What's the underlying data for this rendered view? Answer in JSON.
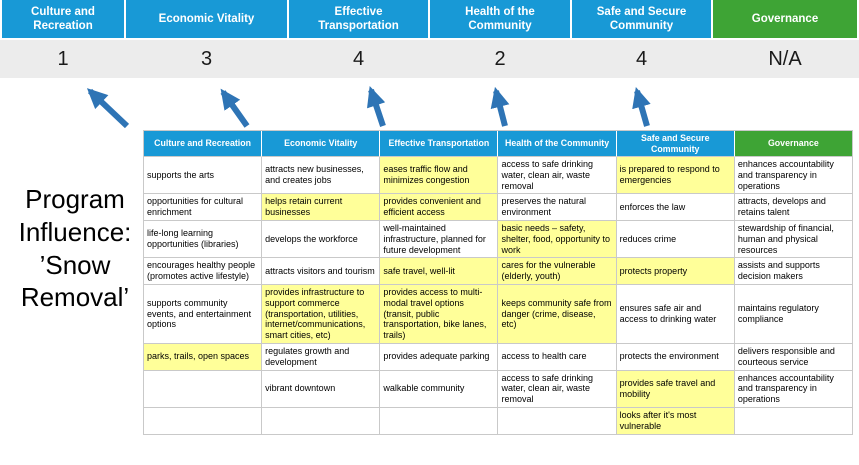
{
  "colors": {
    "pillar_blue": "#1899d6",
    "governance_green": "#3ea435",
    "score_band_bg": "#ececec",
    "highlight_yellow": "#ffff99",
    "arrow_blue": "#2e74b5",
    "cell_border": "#c9c9c9"
  },
  "title": {
    "program_label": "Program\nInfluence:\n’Snow\nRemoval’"
  },
  "pillars": [
    {
      "name": "Culture and Recreation",
      "score": "1",
      "accent": "blue"
    },
    {
      "name": "Economic Vitality",
      "score": "3",
      "accent": "blue"
    },
    {
      "name": "Effective Transportation",
      "score": "4",
      "accent": "blue"
    },
    {
      "name": "Health of the Community",
      "score": "2",
      "accent": "blue"
    },
    {
      "name": "Safe and Secure Community",
      "score": "4",
      "accent": "blue"
    },
    {
      "name": "Governance",
      "score": "N/A",
      "accent": "green"
    }
  ],
  "matrix": {
    "headers": [
      "Culture and Recreation",
      "Economic Vitality",
      "Effective Transportation",
      "Health of the Community",
      "Safe and Secure Community",
      "Governance"
    ],
    "rows": [
      [
        {
          "text": "supports the arts",
          "highlight": false
        },
        {
          "text": "attracts new businesses, and creates jobs",
          "highlight": false
        },
        {
          "text": "eases traffic flow and minimizes congestion",
          "highlight": true
        },
        {
          "text": "access to safe drinking water, clean air, waste removal",
          "highlight": false
        },
        {
          "text": "is prepared to respond to emergencies",
          "highlight": true
        },
        {
          "text": "enhances accountability and transparency in operations",
          "highlight": false
        }
      ],
      [
        {
          "text": "opportunities for cultural enrichment",
          "highlight": false
        },
        {
          "text": "helps retain current businesses",
          "highlight": true
        },
        {
          "text": "provides convenient and efficient access",
          "highlight": true
        },
        {
          "text": "preserves the natural environment",
          "highlight": false
        },
        {
          "text": "enforces the law",
          "highlight": false
        },
        {
          "text": "attracts, develops and retains talent",
          "highlight": false
        }
      ],
      [
        {
          "text": "life-long learning opportunities (libraries)",
          "highlight": false
        },
        {
          "text": "develops the workforce",
          "highlight": false
        },
        {
          "text": "well-maintained infrastructure, planned for future development",
          "highlight": false
        },
        {
          "text": "basic needs – safety, shelter, food, opportunity to work",
          "highlight": true
        },
        {
          "text": "reduces crime",
          "highlight": false
        },
        {
          "text": "stewardship of financial, human and physical resources",
          "highlight": false
        }
      ],
      [
        {
          "text": "encourages healthy people (promotes active lifestyle)",
          "highlight": false
        },
        {
          "text": "attracts visitors and tourism",
          "highlight": false
        },
        {
          "text": "safe travel, well-lit",
          "highlight": true
        },
        {
          "text": "cares for the vulnerable (elderly, youth)",
          "highlight": true
        },
        {
          "text": "protects property",
          "highlight": true
        },
        {
          "text": "assists and supports decision makers",
          "highlight": false
        }
      ],
      [
        {
          "text": "supports community events, and entertainment options",
          "highlight": false
        },
        {
          "text": "provides infrastructure to support commerce (transportation, utilities, internet/communications, smart cities, etc)",
          "highlight": true
        },
        {
          "text": "provides access to multi-modal travel options (transit, public transportation, bike lanes, trails)",
          "highlight": true
        },
        {
          "text": "keeps community safe from danger (crime, disease, etc)",
          "highlight": true
        },
        {
          "text": "ensures safe air and access to drinking water",
          "highlight": false
        },
        {
          "text": "maintains regulatory compliance",
          "highlight": false
        }
      ],
      [
        {
          "text": "parks, trails, open spaces",
          "highlight": true
        },
        {
          "text": "regulates growth and development",
          "highlight": false
        },
        {
          "text": "provides adequate parking",
          "highlight": false
        },
        {
          "text": "access to health care",
          "highlight": false
        },
        {
          "text": "protects the environment",
          "highlight": false
        },
        {
          "text": "delivers responsible and courteous service",
          "highlight": false
        }
      ],
      [
        {
          "text": "",
          "highlight": false
        },
        {
          "text": "vibrant downtown",
          "highlight": false
        },
        {
          "text": "walkable community",
          "highlight": false
        },
        {
          "text": "access to safe drinking water, clean air, waste removal",
          "highlight": false
        },
        {
          "text": "provides safe travel and mobility",
          "highlight": true
        },
        {
          "text": "enhances accountability and transparency in operations",
          "highlight": false
        }
      ],
      [
        {
          "text": "",
          "highlight": false
        },
        {
          "text": "",
          "highlight": false
        },
        {
          "text": "",
          "highlight": false
        },
        {
          "text": "",
          "highlight": false
        },
        {
          "text": "looks after it's most vulnerable",
          "highlight": true
        },
        {
          "text": "",
          "highlight": false
        }
      ]
    ]
  }
}
